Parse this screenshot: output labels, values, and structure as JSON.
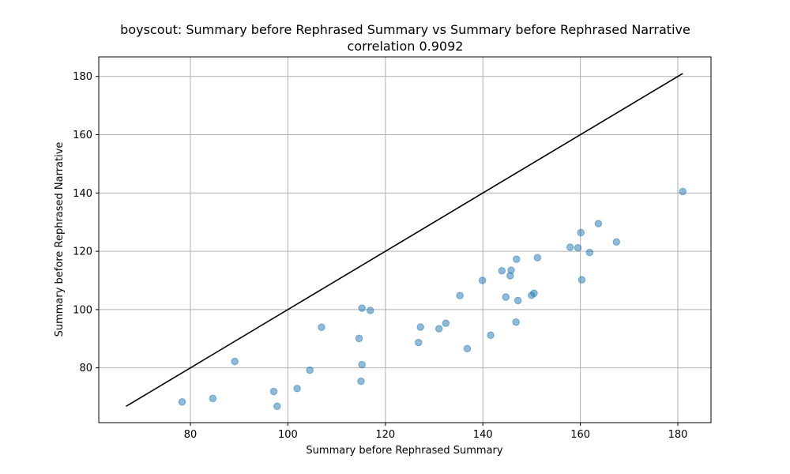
{
  "chart_data": {
    "type": "scatter",
    "title": "boyscout: Summary before Rephrased Summary vs Summary before Rephrased Narrative",
    "subtitle": "correlation 0.9092",
    "xlabel": "Summary before Rephrased Summary",
    "ylabel": "Summary before Rephrased Narrative",
    "xlim": [
      61.2,
      186.8
    ],
    "ylim": [
      61.2,
      186.7
    ],
    "xticks": [
      80,
      100,
      120,
      140,
      160,
      180
    ],
    "yticks": [
      80,
      100,
      120,
      140,
      160,
      180
    ],
    "grid": true,
    "point_color": "#1f77b4",
    "line_color": "#000000",
    "reference_line": {
      "x": [
        66.8,
        181.0
      ],
      "y": [
        66.8,
        181.0
      ]
    },
    "points": [
      {
        "x": 78.3,
        "y": 68.3
      },
      {
        "x": 84.6,
        "y": 69.5
      },
      {
        "x": 89.1,
        "y": 82.2
      },
      {
        "x": 97.1,
        "y": 71.9
      },
      {
        "x": 97.8,
        "y": 66.8
      },
      {
        "x": 101.9,
        "y": 72.9
      },
      {
        "x": 104.5,
        "y": 79.2
      },
      {
        "x": 106.9,
        "y": 93.9
      },
      {
        "x": 114.6,
        "y": 90.1
      },
      {
        "x": 115.0,
        "y": 75.4
      },
      {
        "x": 115.2,
        "y": 81.1
      },
      {
        "x": 115.2,
        "y": 100.5
      },
      {
        "x": 116.9,
        "y": 99.7
      },
      {
        "x": 126.8,
        "y": 88.7
      },
      {
        "x": 127.2,
        "y": 94.0
      },
      {
        "x": 131.0,
        "y": 93.4
      },
      {
        "x": 132.4,
        "y": 95.3
      },
      {
        "x": 135.3,
        "y": 104.8
      },
      {
        "x": 136.8,
        "y": 86.6
      },
      {
        "x": 139.9,
        "y": 110.0
      },
      {
        "x": 141.6,
        "y": 91.2
      },
      {
        "x": 143.9,
        "y": 113.3
      },
      {
        "x": 144.7,
        "y": 104.3
      },
      {
        "x": 145.6,
        "y": 111.6
      },
      {
        "x": 145.8,
        "y": 113.5
      },
      {
        "x": 146.8,
        "y": 95.7
      },
      {
        "x": 146.9,
        "y": 117.3
      },
      {
        "x": 147.2,
        "y": 103.1
      },
      {
        "x": 150.0,
        "y": 104.9
      },
      {
        "x": 150.5,
        "y": 105.6
      },
      {
        "x": 151.2,
        "y": 117.8
      },
      {
        "x": 157.9,
        "y": 121.4
      },
      {
        "x": 159.5,
        "y": 121.2
      },
      {
        "x": 160.1,
        "y": 126.4
      },
      {
        "x": 160.3,
        "y": 110.2
      },
      {
        "x": 161.9,
        "y": 119.6
      },
      {
        "x": 163.7,
        "y": 129.5
      },
      {
        "x": 167.4,
        "y": 123.2
      },
      {
        "x": 181.0,
        "y": 140.5
      }
    ]
  }
}
